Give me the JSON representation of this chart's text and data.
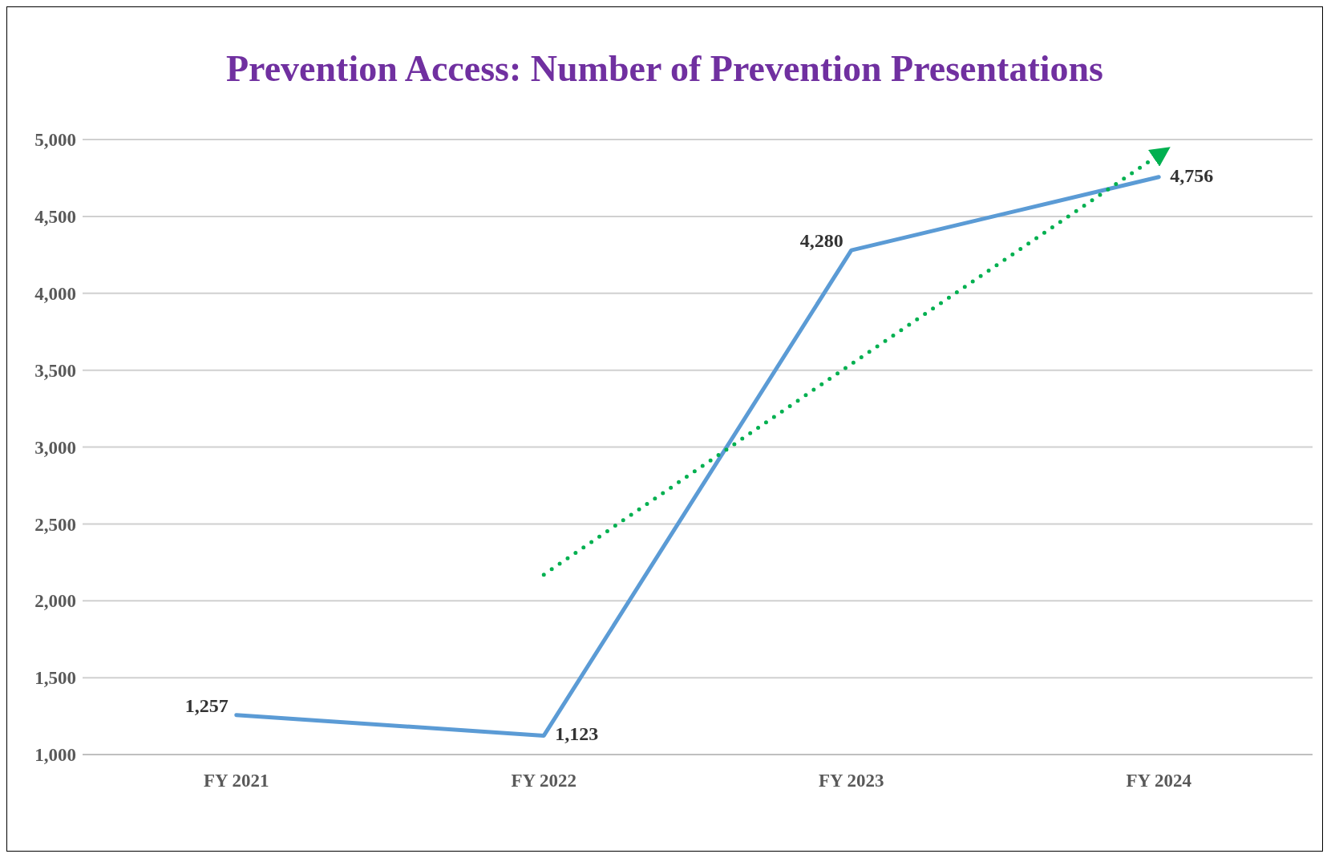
{
  "chart_data": {
    "type": "line",
    "title": "Prevention Access: Number of Prevention Presentations",
    "categories": [
      "FY 2021",
      "FY 2022",
      "FY 2023",
      "FY 2024"
    ],
    "series": [
      {
        "color": "#5b9bd5",
        "values": [
          1257,
          1123,
          4280,
          4756
        ],
        "value_labels": [
          "1,257",
          "1,123",
          "4,280",
          "4,756"
        ],
        "line_style": "solid"
      },
      {
        "type": "line",
        "color": "#00b050",
        "values": [
          null,
          2170,
          3540,
          4900
        ],
        "line_style": "dotted"
      }
    ],
    "ylim": [
      1000,
      5000
    ],
    "yticks": [
      {
        "value": 1000,
        "label": "1,000"
      },
      {
        "value": 1500,
        "label": "1,500"
      },
      {
        "value": 2000,
        "label": "2,000"
      },
      {
        "value": 2500,
        "label": "2,500"
      },
      {
        "value": 3000,
        "label": "3,000"
      },
      {
        "value": 3500,
        "label": "3,500"
      },
      {
        "value": 4000,
        "label": "4,000"
      },
      {
        "value": 4500,
        "label": "4,500"
      },
      {
        "value": 5000,
        "label": "5,000"
      }
    ],
    "grid": "y",
    "marker": "none"
  }
}
